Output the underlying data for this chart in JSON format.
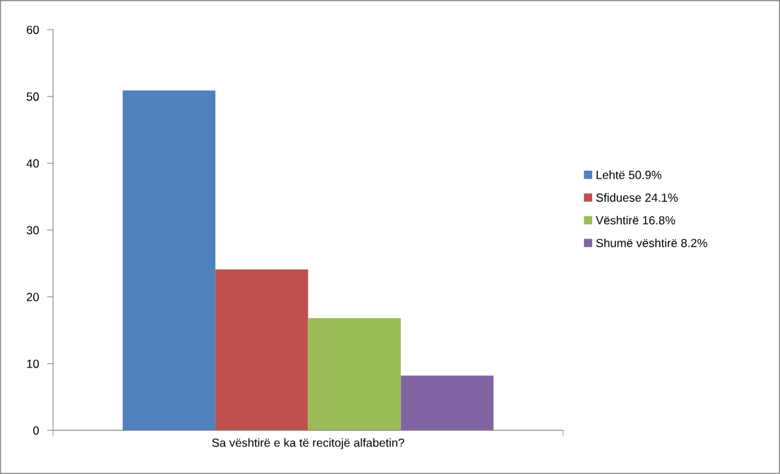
{
  "chart_data": {
    "type": "bar",
    "categories": [
      "Sa vështirë e ka të recitojë alfabetin?"
    ],
    "series": [
      {
        "name": "Lehtë 50.9%",
        "color": "#4f81bd",
        "values": [
          50.9
        ]
      },
      {
        "name": "Sfiduese 24.1%",
        "color": "#c0504d",
        "values": [
          24.1
        ]
      },
      {
        "name": "Vështirë 16.8%",
        "color": "#9bbb59",
        "values": [
          16.8
        ]
      },
      {
        "name": "Shumë vështirë 8.2%",
        "color": "#8064a2",
        "values": [
          8.2
        ]
      }
    ],
    "ylim": [
      0,
      60
    ],
    "yticks": [
      0,
      10,
      20,
      30,
      40,
      50,
      60
    ],
    "legend": "right"
  }
}
